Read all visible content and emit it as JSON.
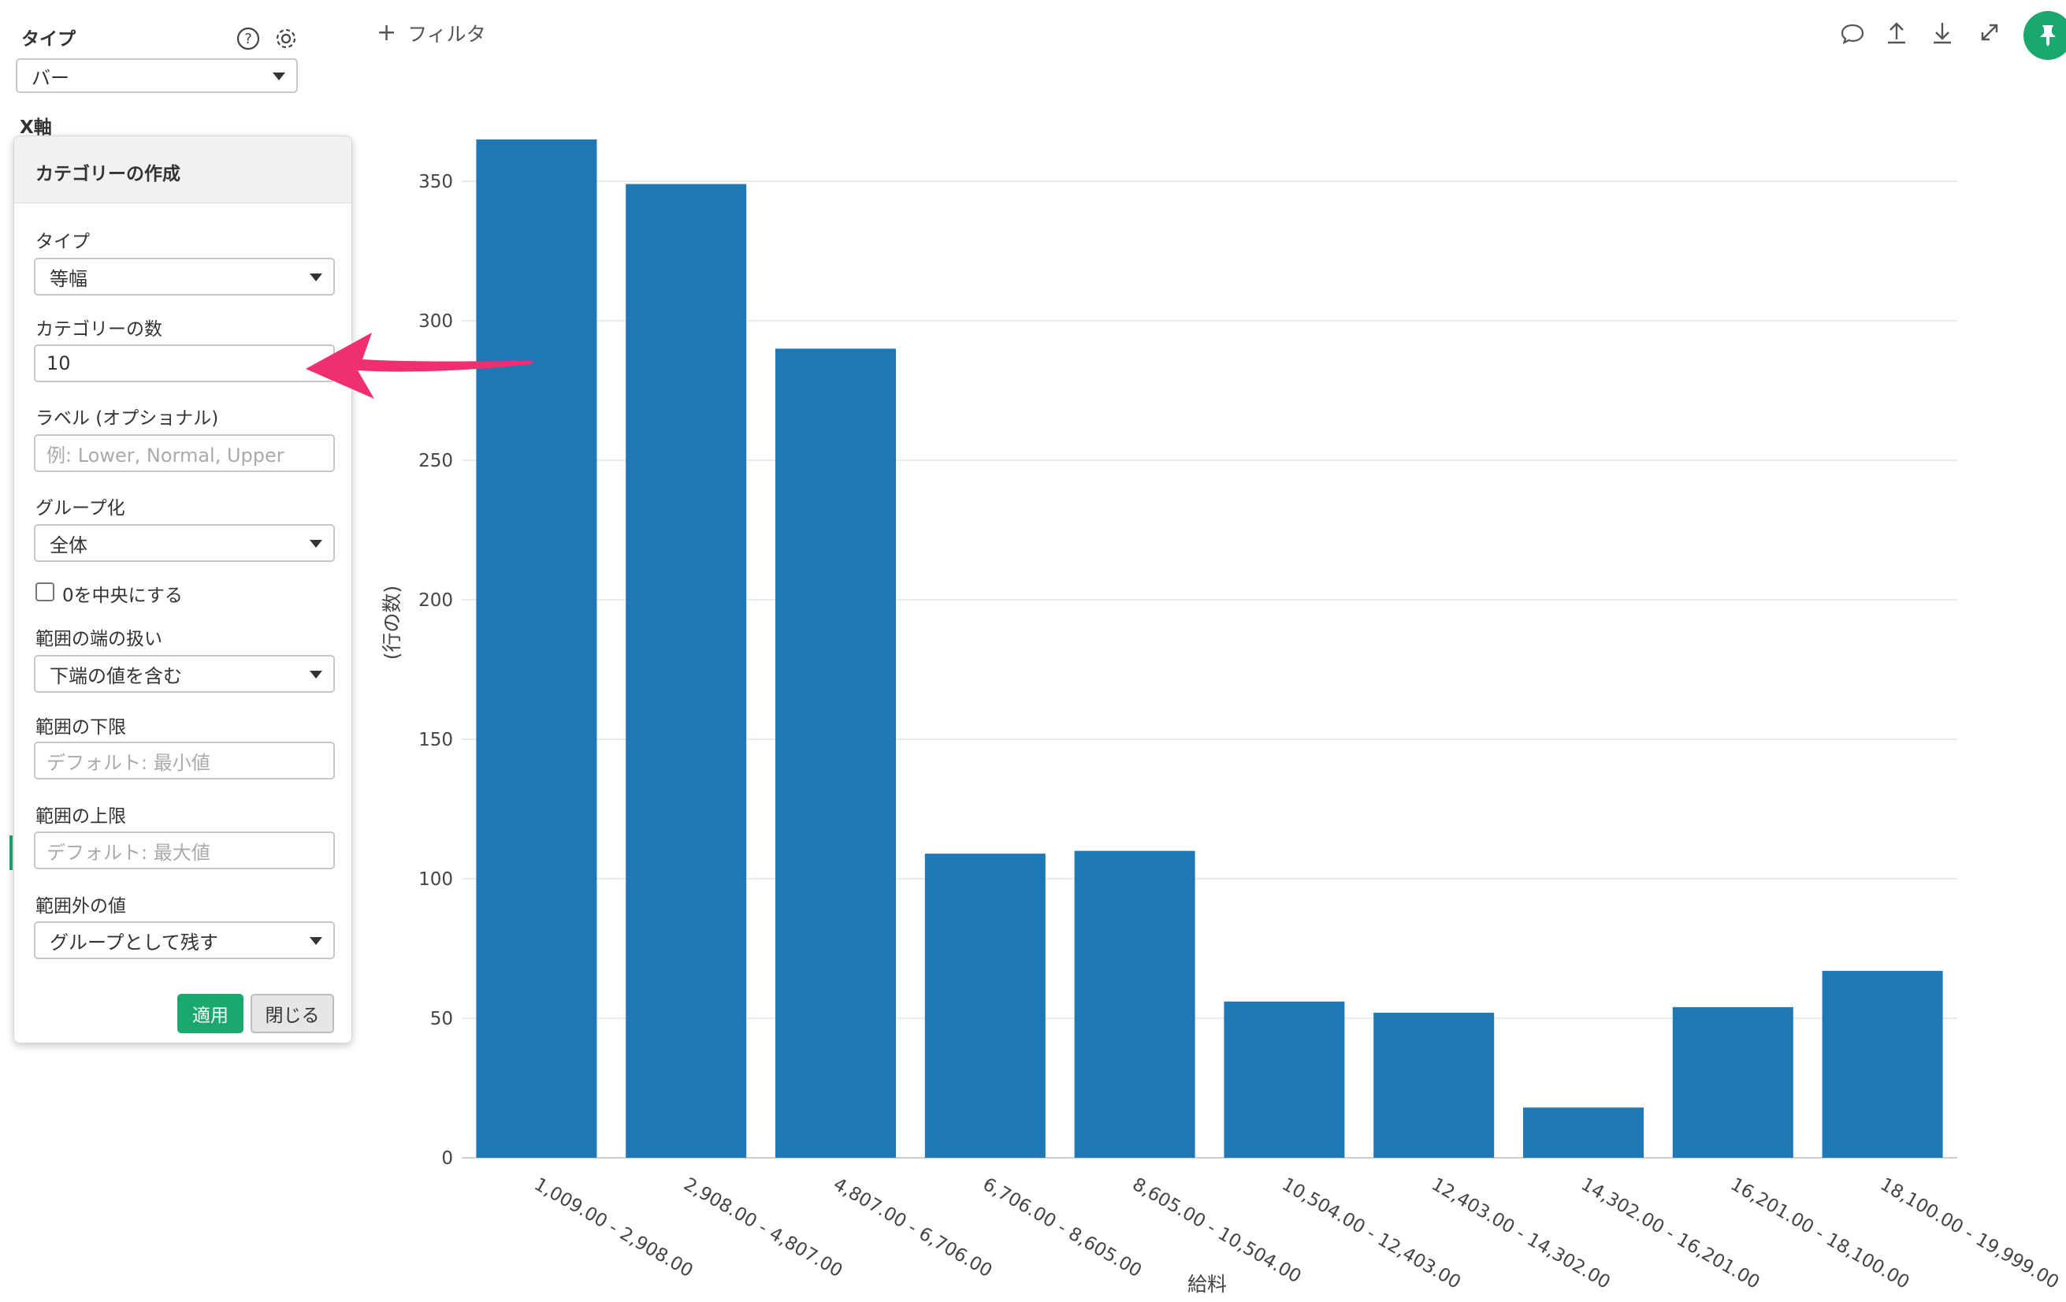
{
  "config": {
    "type_label": "タイプ",
    "type_value": "バー",
    "xaxis_label": "X軸"
  },
  "category_panel": {
    "title": "カテゴリーの作成",
    "type_label": "タイプ",
    "type_value": "等幅",
    "count_label": "カテゴリーの数",
    "count_value": "10",
    "label_label": "ラベル (オプショナル)",
    "label_placeholder": "例: Lower, Normal, Upper",
    "group_label": "グループ化",
    "group_value": "全体",
    "center_zero_label": "0を中央にする",
    "edge_label": "範囲の端の扱い",
    "edge_value": "下端の値を含む",
    "lower_label": "範囲の下限",
    "lower_placeholder": "デフォルト: 最小値",
    "upper_label": "範囲の上限",
    "upper_placeholder": "デフォルト: 最大値",
    "outside_label": "範囲外の値",
    "outside_value": "グループとして残す",
    "apply_label": "適用",
    "close_label": "閉じる"
  },
  "toolbar": {
    "filter_label": "フィルタ"
  },
  "colors": {
    "bar": "#1f77b4",
    "accent": "#1aa86e",
    "arrow": "#f0306e"
  },
  "chart_data": {
    "type": "bar",
    "categories": [
      "1,009.00 - 2,908.00",
      "2,908.00 - 4,807.00",
      "4,807.00 - 6,706.00",
      "6,706.00 - 8,605.00",
      "8,605.00 - 10,504.00",
      "10,504.00 - 12,403.00",
      "12,403.00 - 14,302.00",
      "14,302.00 - 16,201.00",
      "16,201.00 - 18,100.00",
      "18,100.00 - 19,999.00"
    ],
    "values": [
      365,
      349,
      290,
      109,
      110,
      56,
      52,
      18,
      54,
      67
    ],
    "xlabel": "給料",
    "ylabel": "(行の数)",
    "ylim": [
      0,
      350
    ],
    "yticks": [
      0,
      50,
      100,
      150,
      200,
      250,
      300,
      350
    ],
    "grid": true
  }
}
